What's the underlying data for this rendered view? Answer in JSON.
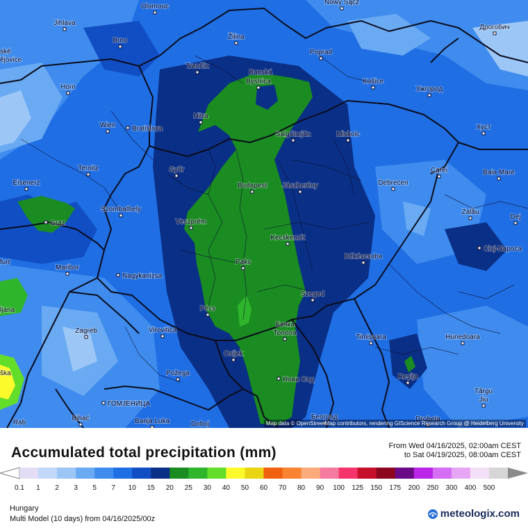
{
  "map": {
    "attribution": "Map data © OpenStreetMap contributors, rendering GIScience Research Group @ Heidelberg University",
    "cities": [
      {
        "name": "Olomouc",
        "dot": "bottom"
      },
      {
        "name": "Nowy Sącz",
        "dot": "bottom"
      },
      {
        "name": "Jihlava",
        "dot": "bottom"
      },
      {
        "name": "Brno",
        "dot": "bottom"
      },
      {
        "name": "Žilina",
        "dot": "bottom"
      },
      {
        "name": "Poprad",
        "dot": "bottom"
      },
      {
        "name": "Дрогобич",
        "dot": "bottom"
      },
      {
        "name": "ské",
        "dot": "none"
      },
      {
        "name": "ějovice",
        "dot": "none"
      },
      {
        "name": "Trenčín",
        "dot": "bottom"
      },
      {
        "name": "Banská",
        "dot": "none"
      },
      {
        "name": "Bystrica",
        "dot": "bottom"
      },
      {
        "name": "Horn",
        "dot": "bottom"
      },
      {
        "name": "Košice",
        "dot": "bottom"
      },
      {
        "name": "Ужгород",
        "dot": "bottom"
      },
      {
        "name": "Nitra",
        "dot": "bottom"
      },
      {
        "name": "Wien",
        "dot": "bottom"
      },
      {
        "name": "Bratislava",
        "dot": "left"
      },
      {
        "name": "Salgótarján",
        "dot": "bottom"
      },
      {
        "name": "Miskolc",
        "dot": "bottom"
      },
      {
        "name": "Хуст",
        "dot": "bottom"
      },
      {
        "name": "Ternitz",
        "dot": "bottom"
      },
      {
        "name": "Győr",
        "dot": "bottom"
      },
      {
        "name": "Carei",
        "dot": "bottom"
      },
      {
        "name": "Baia Mare",
        "dot": "bottom"
      },
      {
        "name": "Eisenerz",
        "dot": "bottom"
      },
      {
        "name": "Budapest",
        "dot": "bottom"
      },
      {
        "name": "Jászberény",
        "dot": "bottom"
      },
      {
        "name": "Debrecen",
        "dot": "bottom"
      },
      {
        "name": "Szombathely",
        "dot": "bottom"
      },
      {
        "name": "Zalău",
        "dot": "bottom"
      },
      {
        "name": "Graz",
        "dot": "left"
      },
      {
        "name": "Veszprém",
        "dot": "bottom"
      },
      {
        "name": "Dej",
        "dot": "bottom"
      },
      {
        "name": "Kecskemét",
        "dot": "bottom"
      },
      {
        "name": "Cluj-Napoca",
        "dot": "left"
      },
      {
        "name": "furt",
        "dot": "none"
      },
      {
        "name": "Maribor",
        "dot": "bottom"
      },
      {
        "name": "Paks",
        "dot": "bottom"
      },
      {
        "name": "Békéscsaba",
        "dot": "bottom"
      },
      {
        "name": "Nagykanizsa",
        "dot": "left"
      },
      {
        "name": "Pécs",
        "dot": "bottom"
      },
      {
        "name": "Szeged",
        "dot": "bottom"
      },
      {
        "name": "ljana",
        "dot": "none"
      },
      {
        "name": "Бачка",
        "dot": "none"
      },
      {
        "name": "Топола",
        "dot": "bottom"
      },
      {
        "name": "Zagreb",
        "dot": "bottom"
      },
      {
        "name": "Virovitica",
        "dot": "bottom"
      },
      {
        "name": "Timișoara",
        "dot": "bottom"
      },
      {
        "name": "Hunedoara",
        "dot": "bottom"
      },
      {
        "name": "Osijek",
        "dot": "bottom"
      },
      {
        "name": "Reșița",
        "dot": "bottom"
      },
      {
        "name": "Požega",
        "dot": "bottom"
      },
      {
        "name": "Нови Сад",
        "dot": "left"
      },
      {
        "name": "ška",
        "dot": "none"
      },
      {
        "name": "Târgu",
        "dot": "none"
      },
      {
        "name": "Jiu",
        "dot": "bottom"
      },
      {
        "name": "ГОМЈЕНИЦА",
        "dot": "left"
      },
      {
        "name": "Rab",
        "dot": "none"
      },
      {
        "name": "Bihać",
        "dot": "bottom"
      },
      {
        "name": "Banja Luka",
        "dot": "bottom"
      },
      {
        "name": "Doboj",
        "dot": "bottom"
      },
      {
        "name": "Београд",
        "dot": "bottom"
      },
      {
        "name": "Drobeta",
        "dot": "bottom"
      }
    ]
  },
  "header": {
    "title": "Accumulated total precipitation (mm)",
    "period_from": "From Wed 04/16/2025, 02:00am CEST",
    "period_to": "to Sat 04/19/2025, 08:00am CEST"
  },
  "legend": {
    "labels": [
      "0.1",
      "1",
      "2",
      "3",
      "5",
      "7",
      "10",
      "15",
      "20",
      "25",
      "30",
      "40",
      "50",
      "60",
      "70",
      "80",
      "90",
      "100",
      "125",
      "150",
      "175",
      "200",
      "250",
      "300",
      "400",
      "500"
    ],
    "colors": [
      "#e2dcf5",
      "#c2d8f8",
      "#9cc6f6",
      "#6aaaf2",
      "#3f8cee",
      "#1f6ee4",
      "#114ec4",
      "#0a2f86",
      "#1a8c22",
      "#2fb52c",
      "#62de2a",
      "#fdfa2c",
      "#e9d514",
      "#f06010",
      "#f98330",
      "#fdab7a",
      "#f57aa0",
      "#f4346a",
      "#c5102c",
      "#8c0620",
      "#6a0a86",
      "#ba25e8",
      "#d46ef2",
      "#e7a6f4",
      "#f4dff8",
      "#d6d6d6"
    ]
  },
  "footer": {
    "region": "Hungary",
    "model": "Multi Model (10 days) from 04/16/2025/00z",
    "brand": "meteologix.com"
  }
}
